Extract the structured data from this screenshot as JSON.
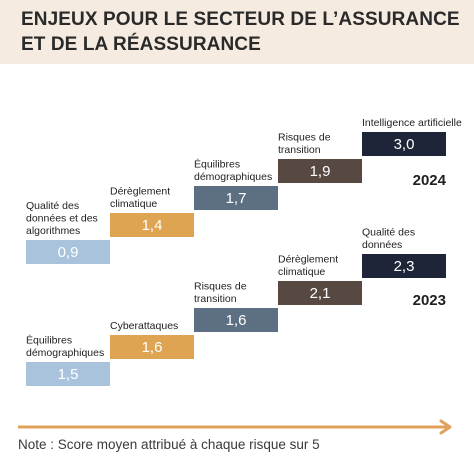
{
  "title": "ENJEUX POUR LE SECTEUR DE L’ASSURANCE ET DE LA RÉASSURANCE",
  "note": "Note : Score moyen attribué à chaque risque sur 5",
  "colors": {
    "header_bg": "#f6ebe1",
    "arrow": "#e0a15a",
    "light_blue": "#a9c3dc",
    "gold": "#dea451",
    "slate": "#5d6f82",
    "brown": "#574841",
    "navy": "#1f2538"
  },
  "chart_data": [
    {
      "type": "bar",
      "year_label": "2024",
      "categories": [
        "Qualité des données et des algorithmes",
        "Dérèglement climatique",
        "Équilibres démographiques",
        "Risques de transition",
        "Intelligence artificielle"
      ],
      "values": [
        "0,9",
        "1,4",
        "1,7",
        "1,9",
        "3,0"
      ],
      "colors": [
        "#a9c3dc",
        "#dea451",
        "#5d6f82",
        "#574841",
        "#1f2538"
      ]
    },
    {
      "type": "bar",
      "year_label": "2023",
      "categories": [
        "Équilibres démographiques",
        "Cyberattaques",
        "Risques de transition",
        "Dérèglement climatique",
        "Qualité des données"
      ],
      "values": [
        "1,5",
        "1,6",
        "1,6",
        "2,1",
        "2,3"
      ],
      "colors": [
        "#a9c3dc",
        "#dea451",
        "#5d6f82",
        "#574841",
        "#1f2538"
      ]
    }
  ]
}
